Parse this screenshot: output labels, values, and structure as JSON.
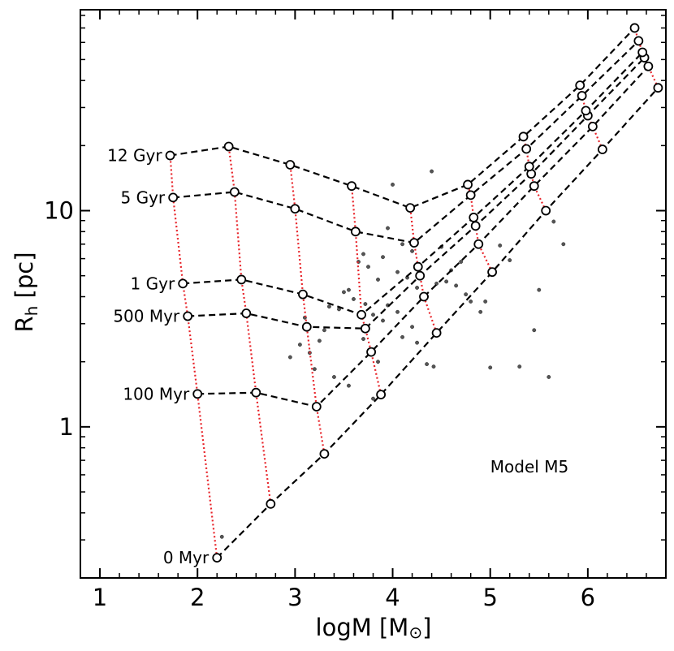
{
  "chart_data": {
    "type": "line",
    "xlabel": "logM [M",
    "xlabel_sub": "⊙",
    "xlabel_close": "]",
    "ylabel": "R",
    "ylabel_sub": "h",
    "ylabel_unit": " [pc]",
    "annotation": "Model M5",
    "xlim": [
      0.8,
      6.8
    ],
    "ylim": [
      0.2,
      85
    ],
    "yscale": "log",
    "xticks": [
      1,
      2,
      3,
      4,
      5,
      6
    ],
    "xtick_labels": [
      "1",
      "2",
      "3",
      "4",
      "5",
      "6"
    ],
    "yticks": [
      1,
      10
    ],
    "ytick_labels": [
      "1",
      "10"
    ],
    "age_series": [
      {
        "name": "0 Myr",
        "x": [
          2.2,
          2.75,
          3.3,
          3.88,
          4.45,
          5.02,
          5.57,
          6.15,
          6.72
        ],
        "y": [
          0.248,
          0.44,
          0.75,
          1.41,
          2.72,
          5.2,
          10.0,
          19.2,
          37.0
        ]
      },
      {
        "name": "100 Myr",
        "x": [
          2.0,
          2.6,
          3.22,
          3.78,
          4.32,
          4.88,
          5.45,
          6.05,
          6.62
        ],
        "y": [
          1.42,
          1.44,
          1.24,
          2.22,
          4.0,
          7.0,
          13.0,
          24.5,
          46.5
        ]
      },
      {
        "name": "500 Myr",
        "x": [
          1.9,
          2.5,
          3.12,
          3.72,
          4.28,
          4.85,
          5.42,
          6.0,
          6.58
        ],
        "y": [
          3.25,
          3.35,
          2.9,
          2.85,
          5.0,
          8.5,
          14.8,
          27.5,
          51.0
        ]
      },
      {
        "name": "1 Gyr",
        "x": [
          1.85,
          2.45,
          3.08,
          3.68,
          4.26,
          4.83,
          5.4,
          5.98,
          6.56
        ],
        "y": [
          4.6,
          4.8,
          4.1,
          3.3,
          5.5,
          9.3,
          16.0,
          29.0,
          54.0
        ]
      },
      {
        "name": "5 Gyr",
        "x": [
          1.75,
          2.38,
          3.0,
          3.62,
          4.22,
          4.8,
          5.37,
          5.94,
          6.52
        ],
        "y": [
          11.5,
          12.2,
          10.2,
          8.0,
          7.1,
          11.8,
          19.3,
          34.0,
          61.0
        ]
      },
      {
        "name": "12 Gyr",
        "x": [
          1.72,
          2.32,
          2.95,
          3.58,
          4.18,
          4.77,
          5.34,
          5.92,
          6.48
        ],
        "y": [
          18.0,
          19.8,
          16.3,
          13.0,
          10.3,
          13.2,
          22.0,
          38.0,
          70.0
        ]
      }
    ],
    "age_labels": [
      "12 Gyr",
      "5 Gyr",
      "1 Gyr",
      "500 Myr",
      "100 Myr",
      "0 Myr"
    ],
    "observed_points": {
      "x": [
        4.0,
        3.95,
        4.4,
        3.1,
        3.65,
        3.5,
        3.72,
        3.9,
        3.85,
        4.05,
        3.8,
        4.1,
        4.2,
        4.3,
        4.25,
        4.35,
        4.5,
        4.6,
        4.45,
        3.55,
        3.6,
        3.45,
        3.7,
        3.75,
        4.15,
        4.55,
        4.7,
        4.65,
        4.8,
        4.9,
        4.75,
        3.3,
        3.35,
        3.25,
        3.15,
        3.05,
        2.95,
        2.25,
        3.85,
        4.35,
        4.42,
        5.0,
        5.3,
        5.6,
        5.45,
        5.5,
        5.75,
        5.65,
        5.2,
        5.1,
        4.95,
        4.2,
        4.1,
        3.9,
        3.7,
        3.95,
        3.2,
        3.4,
        3.55,
        3.8,
        4.05,
        4.25
      ],
      "y": [
        13.2,
        8.3,
        15.2,
        3.2,
        5.8,
        4.2,
        3.7,
        6.1,
        4.8,
        5.2,
        3.3,
        7.0,
        6.5,
        5.0,
        4.4,
        4.0,
        6.8,
        5.3,
        4.6,
        4.3,
        3.9,
        3.5,
        6.3,
        5.5,
        4.9,
        4.7,
        5.8,
        4.5,
        3.8,
        3.4,
        4.1,
        2.8,
        3.6,
        2.5,
        2.2,
        2.4,
        2.1,
        0.31,
        2.0,
        1.95,
        1.9,
        1.88,
        1.9,
        1.7,
        2.8,
        4.3,
        7.0,
        8.9,
        5.9,
        6.9,
        3.8,
        2.9,
        2.6,
        3.1,
        2.55,
        3.65,
        1.85,
        1.7,
        1.55,
        1.35,
        3.4,
        2.45
      ]
    },
    "colors": {
      "age_line": "#000000",
      "isomass_line": "#e8242a",
      "marker_edge": "#000000",
      "marker_face": "#ffffff",
      "observed": "#555555"
    }
  }
}
